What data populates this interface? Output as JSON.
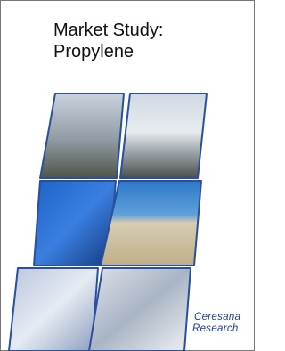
{
  "title": {
    "line1": "Market Study:",
    "line2": "Propylene"
  },
  "publisher": {
    "line1": "Ceresana",
    "line2": "Research"
  }
}
